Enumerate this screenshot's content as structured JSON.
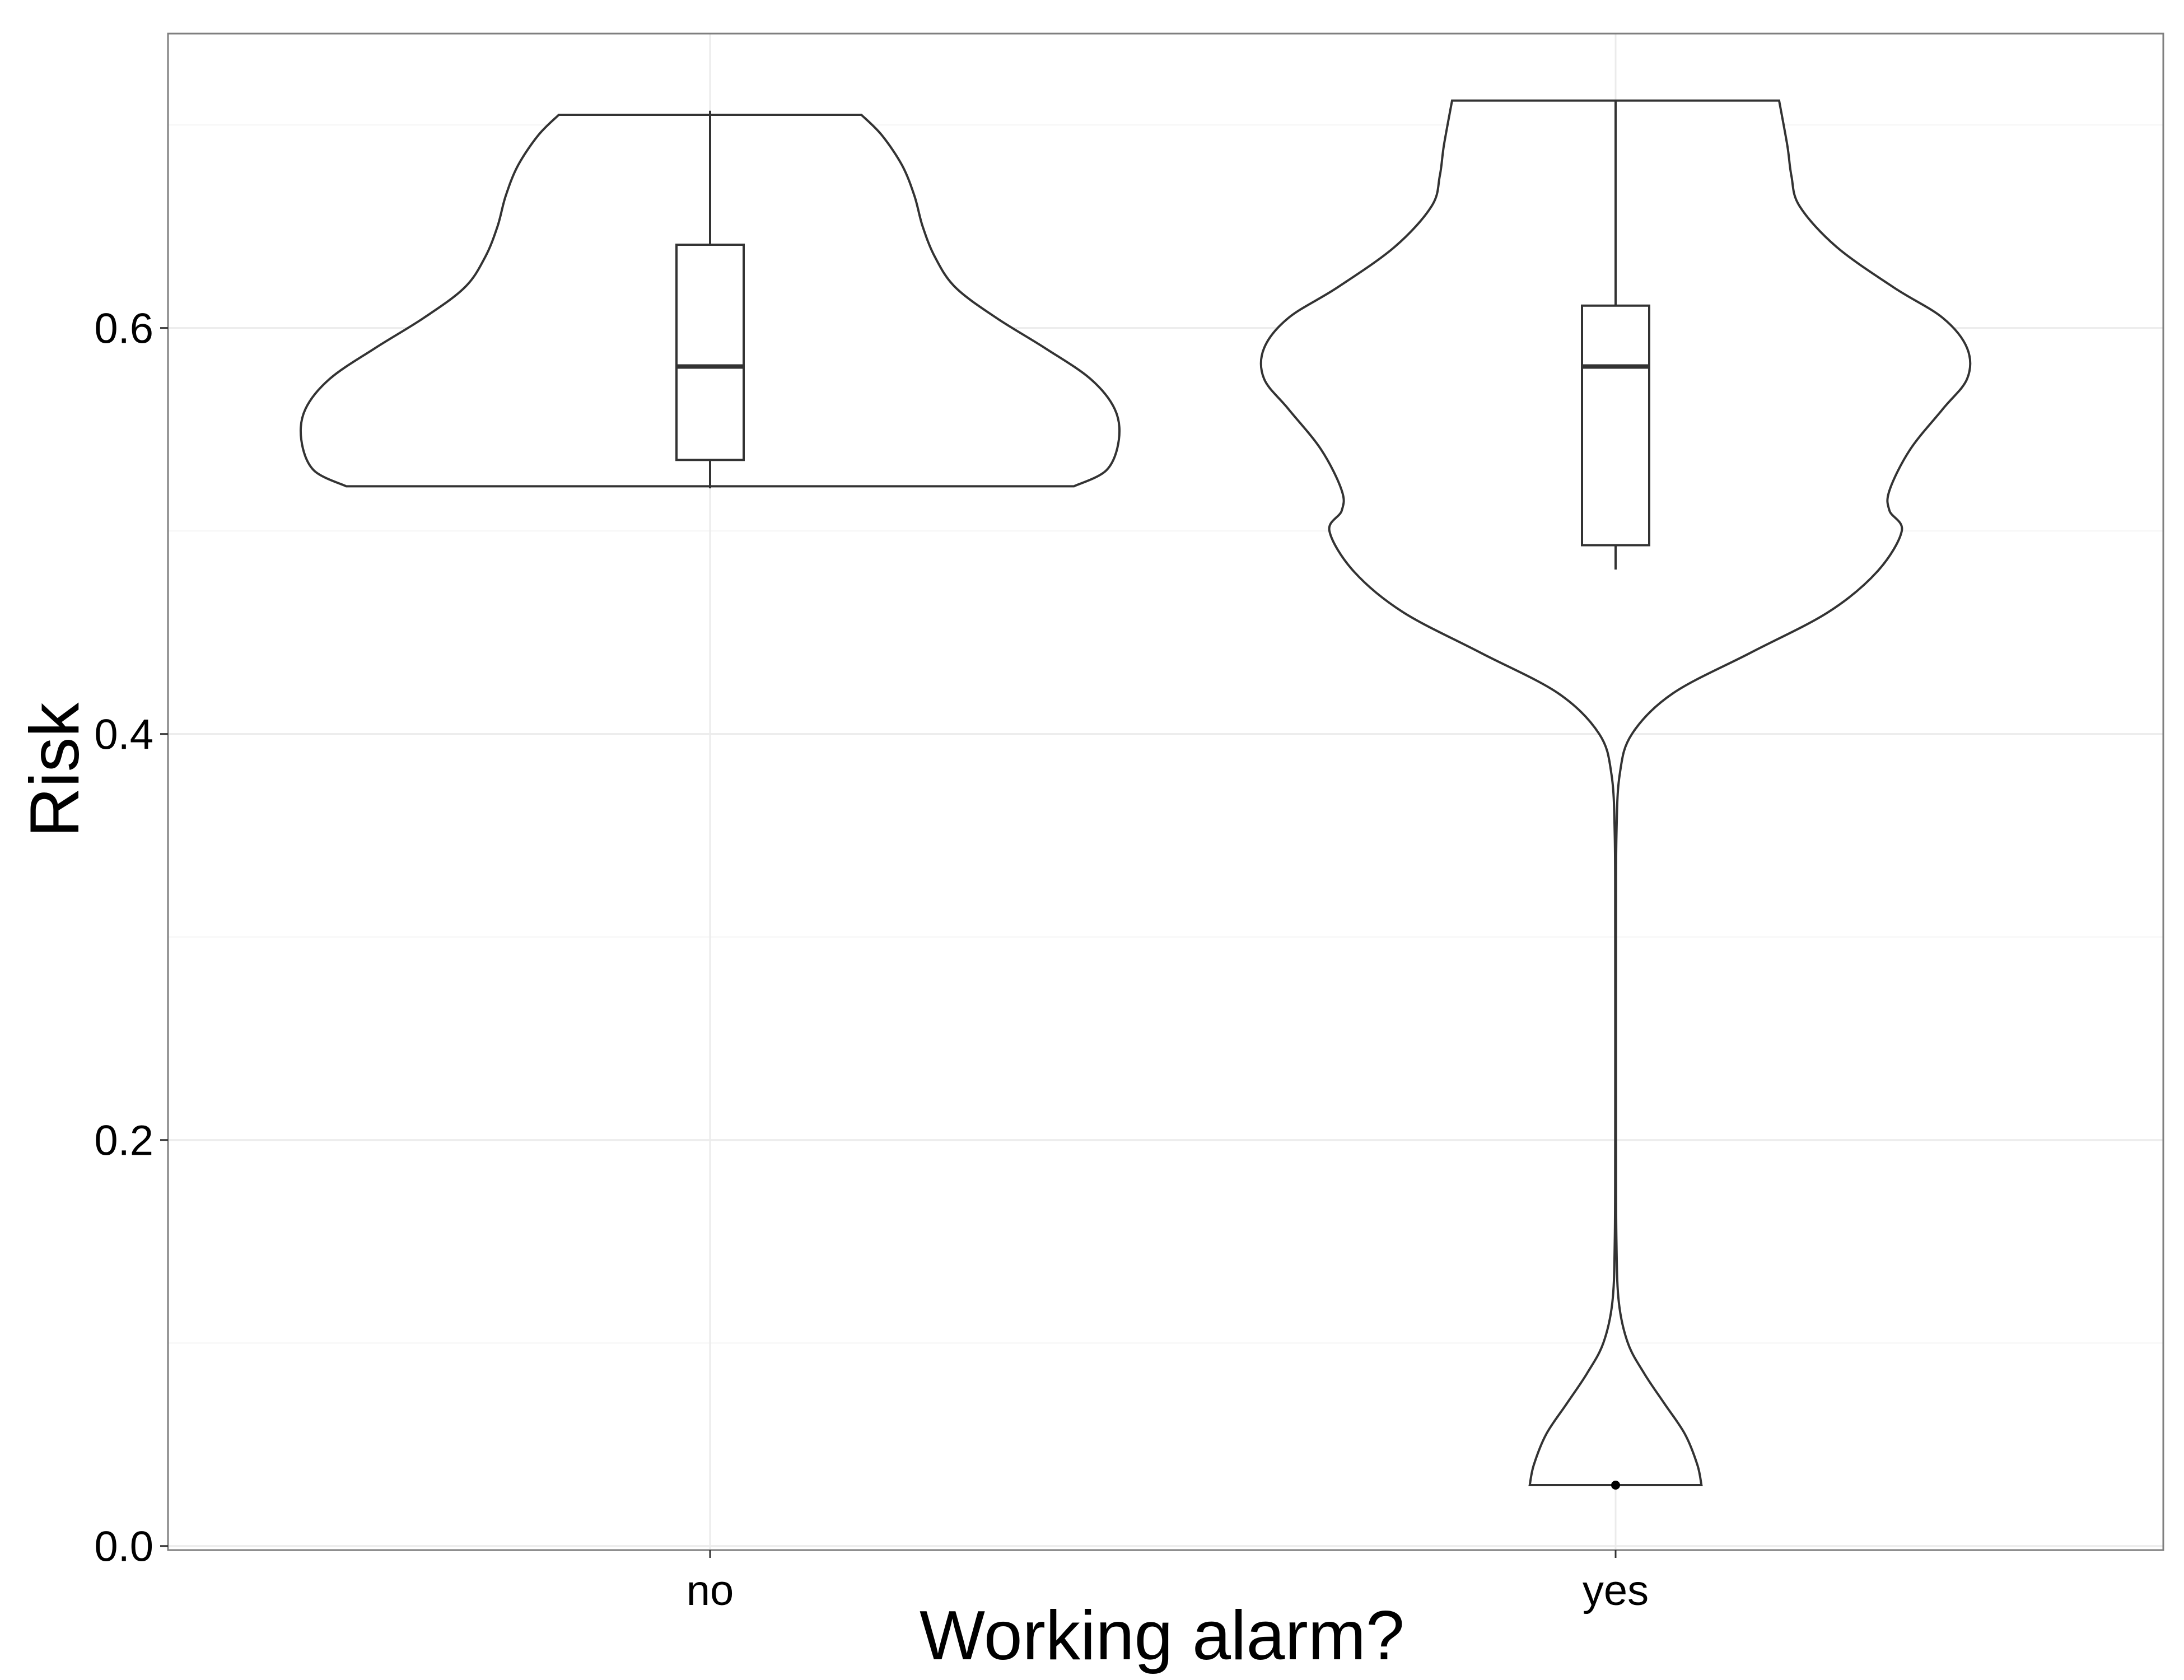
{
  "chart_data": {
    "type": "violin",
    "title": "",
    "xlabel": "Working alarm?",
    "ylabel": "Risk",
    "categories": [
      "no",
      "yes"
    ],
    "ylim": [
      -0.002,
      0.745
    ],
    "yticks": [
      0.0,
      0.2,
      0.4,
      0.6
    ],
    "ytick_labels": [
      "0.0",
      "0.2",
      "0.4",
      "0.6"
    ],
    "grid": true,
    "legend": "none",
    "colors": {
      "panel_border": "#7f7f7f",
      "grid_major": "#ebebeb",
      "grid_minor": "#f5f5f5",
      "outline": "#333333",
      "text": "#000000"
    },
    "series": [
      {
        "category": "no",
        "violin_width": [
          [
            0.522,
            0.89
          ],
          [
            0.53,
            0.97
          ],
          [
            0.545,
            1.0
          ],
          [
            0.56,
            0.99
          ],
          [
            0.575,
            0.93
          ],
          [
            0.59,
            0.82
          ],
          [
            0.605,
            0.7
          ],
          [
            0.62,
            0.6
          ],
          [
            0.635,
            0.55
          ],
          [
            0.65,
            0.52
          ],
          [
            0.665,
            0.5
          ],
          [
            0.68,
            0.47
          ],
          [
            0.695,
            0.42
          ],
          [
            0.705,
            0.37
          ]
        ],
        "box": {
          "min": 0.521,
          "q1": 0.535,
          "median": 0.581,
          "q3": 0.641,
          "max": 0.707
        },
        "outliers": []
      },
      {
        "category": "yes",
        "violin_width": [
          [
            0.03,
            0.21
          ],
          [
            0.04,
            0.2
          ],
          [
            0.055,
            0.17
          ],
          [
            0.07,
            0.12
          ],
          [
            0.085,
            0.07
          ],
          [
            0.1,
            0.03
          ],
          [
            0.12,
            0.008
          ],
          [
            0.15,
            0.002
          ],
          [
            0.2,
            0.001
          ],
          [
            0.3,
            0.001
          ],
          [
            0.35,
            0.002
          ],
          [
            0.38,
            0.01
          ],
          [
            0.4,
            0.04
          ],
          [
            0.42,
            0.14
          ],
          [
            0.44,
            0.33
          ],
          [
            0.46,
            0.52
          ],
          [
            0.48,
            0.64
          ],
          [
            0.5,
            0.7
          ],
          [
            0.51,
            0.67
          ],
          [
            0.52,
            0.67
          ],
          [
            0.54,
            0.72
          ],
          [
            0.56,
            0.8
          ],
          [
            0.575,
            0.86
          ],
          [
            0.59,
            0.86
          ],
          [
            0.605,
            0.8
          ],
          [
            0.62,
            0.68
          ],
          [
            0.64,
            0.54
          ],
          [
            0.66,
            0.45
          ],
          [
            0.675,
            0.43
          ],
          [
            0.69,
            0.42
          ],
          [
            0.712,
            0.4
          ]
        ],
        "box": {
          "min": 0.481,
          "q1": 0.493,
          "median": 0.581,
          "q3": 0.611,
          "max": 0.712
        },
        "outliers": [
          0.03
        ]
      }
    ]
  }
}
